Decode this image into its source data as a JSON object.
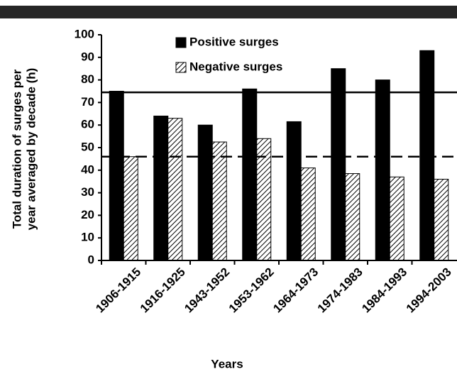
{
  "chart_data": {
    "type": "bar",
    "ylabel_lines": [
      "Total duration of surges per",
      "year averaged by decade (h)"
    ],
    "xlabel": "Years",
    "categories": [
      "1906-1915",
      "1916-1925",
      "1943-1952",
      "1953-1962",
      "1964-1973",
      "1974-1983",
      "1984-1993",
      "1994-2003"
    ],
    "series": [
      {
        "name": "Positive surges",
        "color": "#000000",
        "pattern": "solid",
        "values": [
          75,
          64,
          60,
          76,
          61.5,
          85,
          80,
          93
        ]
      },
      {
        "name": "Negative surges",
        "color": "#000000",
        "pattern": "hatch",
        "values": [
          46,
          63,
          52.5,
          54,
          41,
          38.5,
          37,
          36
        ]
      }
    ],
    "reference_lines": [
      {
        "value": 74.5,
        "style": "solid"
      },
      {
        "value": 46,
        "style": "dashed"
      }
    ],
    "ylim": [
      0,
      100
    ],
    "yticks": [
      0,
      10,
      20,
      30,
      40,
      50,
      60,
      70,
      80,
      90,
      100
    ],
    "grid": false
  }
}
